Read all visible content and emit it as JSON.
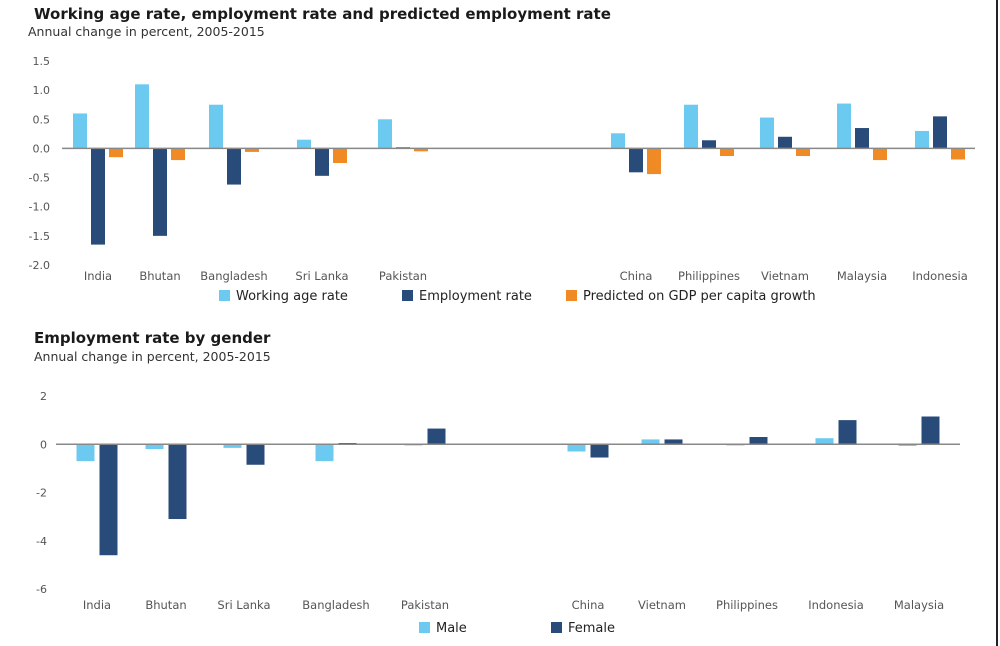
{
  "colors": {
    "working": "#6ccaf0",
    "employment": "#284b7a",
    "predicted": "#f08a24",
    "male": "#6ccaf0",
    "female": "#284b7a",
    "axis": "#888888"
  },
  "chart_data": [
    {
      "type": "bar",
      "title": "Working age rate, employment rate and predicted employment rate",
      "subtitle": "Annual change in percent, 2005-2015",
      "xlabel": "",
      "ylabel": "",
      "ylim": [
        -2.0,
        1.5
      ],
      "yticks": [
        1.5,
        1.0,
        0.5,
        0.0,
        -0.5,
        -1.0,
        -1.5,
        -2.0
      ],
      "ytick_labels": [
        "1.5",
        "1.0",
        "0.5",
        "0.0",
        "-0.5",
        "-1.0",
        "-1.5",
        "-2.0"
      ],
      "grid": false,
      "legend_position": "bottom",
      "categories": [
        "India",
        "Bhutan",
        "Bangladesh",
        "Sri Lanka",
        "Pakistan",
        "China",
        "Philippines",
        "Vietnam",
        "Malaysia",
        "Indonesia"
      ],
      "gap_after_index": 4,
      "series": [
        {
          "name": "Working age rate",
          "color_key": "working",
          "values": [
            0.6,
            1.1,
            0.75,
            0.15,
            0.5,
            0.26,
            0.75,
            0.53,
            0.77,
            0.3
          ]
        },
        {
          "name": "Employment rate",
          "color_key": "employment",
          "values": [
            -1.65,
            -1.5,
            -0.62,
            -0.47,
            0.02,
            -0.41,
            0.14,
            0.2,
            0.35,
            0.55
          ]
        },
        {
          "name": "Predicted on GDP per capita growth",
          "color_key": "predicted",
          "values": [
            -0.15,
            -0.2,
            -0.06,
            -0.25,
            -0.05,
            -0.44,
            -0.13,
            -0.13,
            -0.2,
            -0.19
          ]
        }
      ]
    },
    {
      "type": "bar",
      "title": "Employment rate by gender",
      "subtitle": "Annual change in percent, 2005-2015",
      "xlabel": "",
      "ylabel": "",
      "ylim": [
        -6,
        2
      ],
      "yticks": [
        2,
        0,
        -2,
        -4,
        -6
      ],
      "ytick_labels": [
        "2",
        "0",
        "-2",
        "-4",
        "-6"
      ],
      "grid": false,
      "legend_position": "bottom",
      "categories": [
        "India",
        "Bhutan",
        "Sri Lanka",
        "Bangladesh",
        "Pakistan",
        "China",
        "Vietnam",
        "Philippines",
        "Indonesia",
        "Malaysia"
      ],
      "gap_after_index": 4,
      "series": [
        {
          "name": "Male",
          "color_key": "male",
          "values": [
            -0.7,
            -0.2,
            -0.15,
            -0.7,
            -0.02,
            -0.3,
            0.2,
            -0.02,
            0.25,
            -0.07
          ]
        },
        {
          "name": "Female",
          "color_key": "female",
          "values": [
            -4.6,
            -3.1,
            -0.85,
            0.05,
            0.65,
            -0.55,
            0.2,
            0.3,
            1.0,
            1.15
          ]
        }
      ]
    }
  ]
}
